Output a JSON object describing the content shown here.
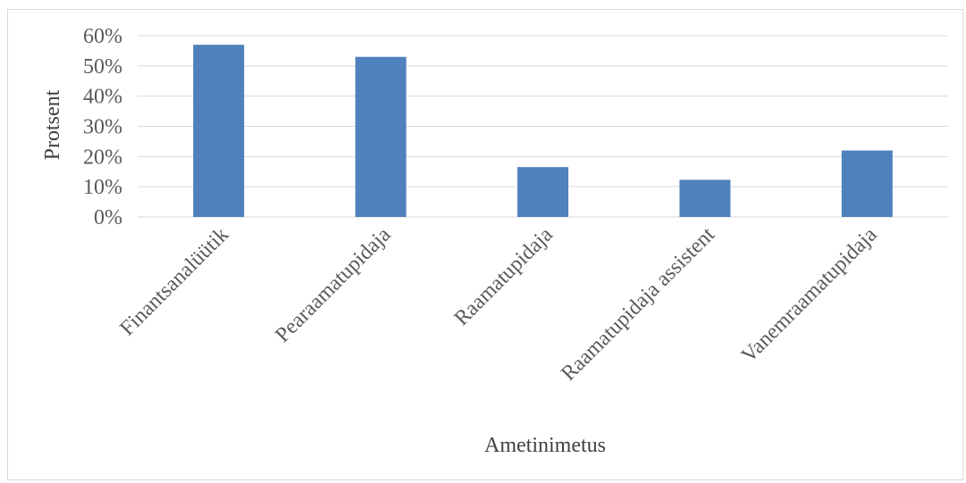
{
  "chart_data": {
    "type": "bar",
    "categories": [
      "Finantsanalüütik",
      "Pearaamatupidaja",
      "Raamatupidaja",
      "Raamatupidaja assistent",
      "Vanemraamatupidaja"
    ],
    "values": [
      57,
      53,
      16.5,
      12.3,
      22
    ],
    "title": "",
    "xlabel": "Ametinimetus",
    "ylabel": "Protsent",
    "ylim": [
      0,
      60
    ],
    "yticks": [
      0,
      10,
      20,
      30,
      40,
      50,
      60
    ],
    "ytick_labels": [
      "0%",
      "10%",
      "20%",
      "30%",
      "40%",
      "50%",
      "60%"
    ],
    "grid": true,
    "legend": "none",
    "bar_color": "#4f81bd"
  }
}
